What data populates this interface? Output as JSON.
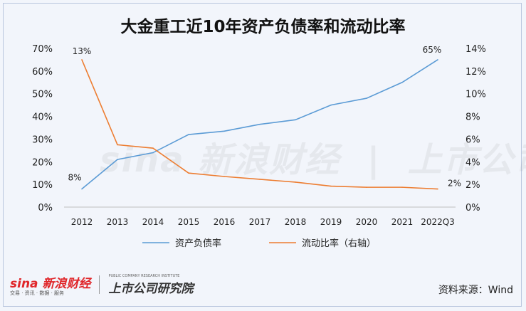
{
  "title": "大金重工近10年资产负债率和流动比率",
  "source": "资料来源：Wind",
  "watermark": {
    "brand": "sina 新浪财经",
    "brand_sub": "交易 · 资讯 · 数据 · 服务",
    "institute": "上市公司研究院",
    "institute_en": "PUBLIC COMPANY RESEARCH INSTITUTE"
  },
  "chart_data": {
    "type": "line",
    "categories": [
      "2012",
      "2013",
      "2014",
      "2015",
      "2016",
      "2017",
      "2018",
      "2019",
      "2020",
      "2021",
      "2022Q3"
    ],
    "y_left": {
      "ticks": [
        "0%",
        "10%",
        "20%",
        "30%",
        "40%",
        "50%",
        "60%",
        "70%"
      ],
      "ylim": [
        0,
        70
      ]
    },
    "y_right": {
      "ticks": [
        "0%",
        "2%",
        "4%",
        "6%",
        "8%",
        "10%",
        "12%",
        "14%"
      ],
      "ylim": [
        0,
        14
      ]
    },
    "series": [
      {
        "name": "资产负债率",
        "axis": "left",
        "color": "#5b9bd5",
        "values": [
          8,
          21,
          24,
          32,
          33.5,
          36.5,
          38.5,
          45,
          48,
          55,
          65
        ],
        "labels": {
          "0": "8%",
          "10": "65%"
        }
      },
      {
        "name": "流动比率（右轴）",
        "axis": "right",
        "color": "#ed7d31",
        "values": [
          13,
          5.5,
          5.2,
          3.0,
          2.7,
          2.45,
          2.2,
          1.85,
          1.75,
          1.75,
          1.6
        ],
        "labels": {
          "0": "13%",
          "10": "2%"
        }
      }
    ],
    "legend": "bottom",
    "grid": false
  }
}
